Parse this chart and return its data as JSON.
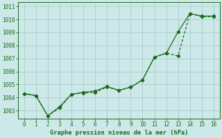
{
  "xlabel": "Graphe pression niveau de la mer (hPa)",
  "bg_color": "#cce8e8",
  "grid_color": "#aacccc",
  "line_color": "#1a6b1a",
  "series1_x": [
    0,
    1,
    2,
    3,
    4,
    5,
    6,
    7,
    8,
    9,
    10,
    11,
    12,
    13,
    14,
    15,
    16
  ],
  "series1_y": [
    1004.3,
    1004.15,
    1002.6,
    1003.2,
    1004.25,
    1004.35,
    1004.4,
    1004.8,
    1004.55,
    1004.8,
    1005.35,
    1007.1,
    1007.4,
    1007.2,
    1010.45,
    1010.2,
    1010.2
  ],
  "series2_x": [
    0,
    1,
    2,
    3,
    4,
    5,
    6,
    7,
    8,
    9,
    10,
    11,
    12,
    13,
    14,
    15,
    16
  ],
  "series2_y": [
    1004.3,
    1004.15,
    1002.6,
    1003.3,
    1004.25,
    1004.4,
    1004.5,
    1004.85,
    1004.55,
    1004.8,
    1005.35,
    1007.1,
    1007.4,
    1009.05,
    1010.45,
    1010.25,
    1010.25
  ],
  "xlim": [
    -0.5,
    16.5
  ],
  "ylim": [
    1002.4,
    1011.3
  ],
  "yticks": [
    1003,
    1004,
    1005,
    1006,
    1007,
    1008,
    1009,
    1010,
    1011
  ],
  "xticks": [
    0,
    1,
    2,
    3,
    4,
    5,
    6,
    7,
    8,
    9,
    10,
    11,
    12,
    13,
    14,
    15,
    16
  ],
  "marker": "D",
  "markersize": 2.2,
  "linewidth": 0.9,
  "tick_fontsize": 5.5,
  "xlabel_fontsize": 6.2
}
